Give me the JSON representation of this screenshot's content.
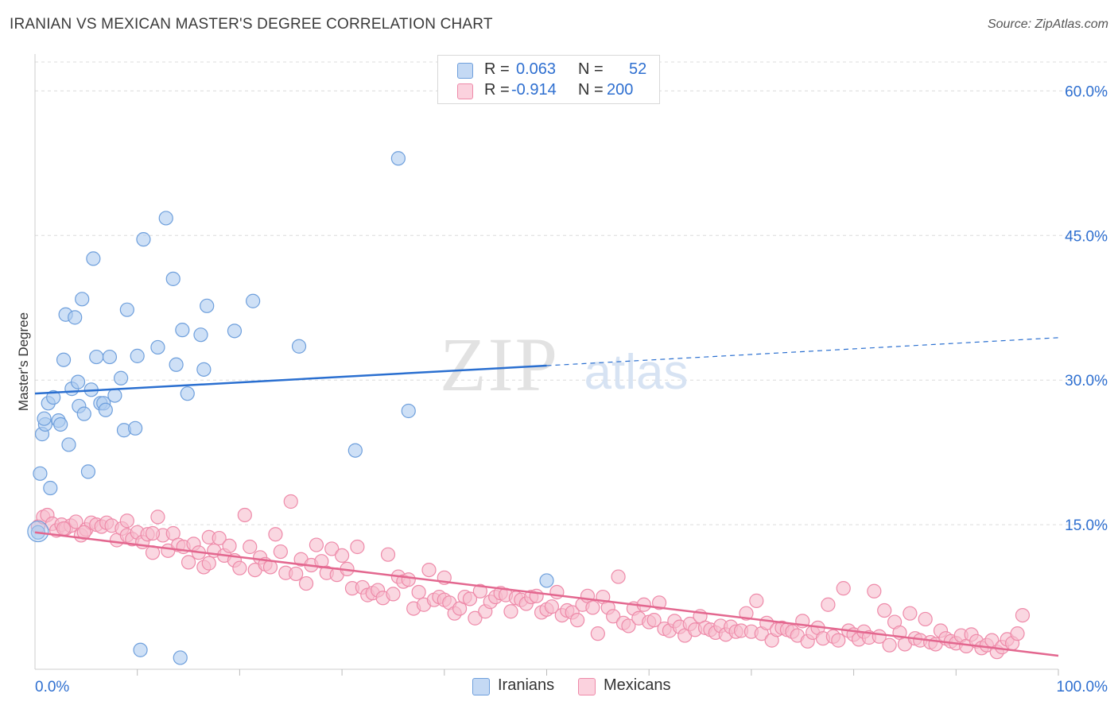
{
  "header": {
    "title": "IRANIAN VS MEXICAN MASTER'S DEGREE CORRELATION CHART",
    "source": "Source: ZipAtlas.com"
  },
  "watermark": {
    "zip": "ZIP",
    "atlas": "atlas"
  },
  "legend": {
    "rows": [
      {
        "r_label": "R =",
        "r_value": "0.063",
        "n_label": "N =",
        "n_value": "52",
        "color": "#a9c8f0"
      },
      {
        "r_label": "R =",
        "r_value": "-0.914",
        "n_label": "N =",
        "n_value": "200",
        "color": "#f6b8cb"
      }
    ]
  },
  "bottom_legend": [
    {
      "label": "Iranians",
      "color": "#a9c8f0"
    },
    {
      "label": "Mexicans",
      "color": "#f6b8cb"
    }
  ],
  "colors": {
    "blue_fill": "#aecbf0",
    "blue_stroke": "#6e9fdc",
    "blue_line": "#2a6fd0",
    "pink_fill": "#f7bccd",
    "pink_stroke": "#ee8aa9",
    "pink_line": "#e3678f",
    "tick_label": "#2e6fd0",
    "grid": "#dcdcdc"
  },
  "chart_data": {
    "type": "scatter",
    "title": "IRANIAN VS MEXICAN MASTER'S DEGREE CORRELATION CHART",
    "xlabel": "",
    "ylabel": "Master's Degree",
    "xlim": [
      0,
      100
    ],
    "ylim": [
      0,
      63
    ],
    "x_tick_labels": [
      "0.0%",
      "100.0%"
    ],
    "y_ticks": [
      15,
      30,
      45,
      60
    ],
    "y_tick_labels": [
      "15.0%",
      "30.0%",
      "45.0%",
      "60.0%"
    ],
    "grid": true,
    "series": [
      {
        "name": "Iranians",
        "r": 0.063,
        "n": 52,
        "trend": {
          "x0": 0,
          "y0": 28.6,
          "x1": 50,
          "y1": 31.5,
          "dashed_to_x": 100,
          "dashed_to_y": 34.4
        },
        "points": [
          [
            0.5,
            20.3
          ],
          [
            0.7,
            24.4
          ],
          [
            1.0,
            25.4
          ],
          [
            1.3,
            27.6
          ],
          [
            1.5,
            18.8
          ],
          [
            1.8,
            28.2
          ],
          [
            2.3,
            25.8
          ],
          [
            2.5,
            25.4
          ],
          [
            2.8,
            32.1
          ],
          [
            3.0,
            36.8
          ],
          [
            3.3,
            23.3
          ],
          [
            3.6,
            29.1
          ],
          [
            3.9,
            36.5
          ],
          [
            4.2,
            29.8
          ],
          [
            4.3,
            27.3
          ],
          [
            4.6,
            38.4
          ],
          [
            4.8,
            26.5
          ],
          [
            5.2,
            20.5
          ],
          [
            5.5,
            29.0
          ],
          [
            5.7,
            42.6
          ],
          [
            6.0,
            32.4
          ],
          [
            6.4,
            27.6
          ],
          [
            6.7,
            27.6
          ],
          [
            6.9,
            26.9
          ],
          [
            7.3,
            32.4
          ],
          [
            7.8,
            28.4
          ],
          [
            8.4,
            30.2
          ],
          [
            8.7,
            24.8
          ],
          [
            9.0,
            37.3
          ],
          [
            9.8,
            25.0
          ],
          [
            10.0,
            32.5
          ],
          [
            10.3,
            2.0
          ],
          [
            10.6,
            44.6
          ],
          [
            12.0,
            33.4
          ],
          [
            12.8,
            46.8
          ],
          [
            13.5,
            40.5
          ],
          [
            13.8,
            31.6
          ],
          [
            14.2,
            1.2
          ],
          [
            14.4,
            35.2
          ],
          [
            14.9,
            28.6
          ],
          [
            16.2,
            34.7
          ],
          [
            16.5,
            31.1
          ],
          [
            16.8,
            37.7
          ],
          [
            19.5,
            35.1
          ],
          [
            21.3,
            38.2
          ],
          [
            25.8,
            33.5
          ],
          [
            31.3,
            22.7
          ],
          [
            35.5,
            53.0
          ],
          [
            36.5,
            26.8
          ],
          [
            50.0,
            9.2
          ],
          [
            0.3,
            14.2
          ],
          [
            0.9,
            26.0
          ]
        ]
      },
      {
        "name": "Mexicans",
        "r": -0.914,
        "n": 200,
        "trend": {
          "x0": 0,
          "y0": 14.2,
          "x1": 100,
          "y1": 1.4
        },
        "points": [
          [
            0.3,
            14.8
          ],
          [
            0.8,
            15.8
          ],
          [
            1.2,
            16.0
          ],
          [
            1.7,
            15.1
          ],
          [
            2.1,
            14.4
          ],
          [
            2.6,
            15.0
          ],
          [
            3.0,
            14.6
          ],
          [
            3.5,
            14.9
          ],
          [
            4.0,
            15.3
          ],
          [
            4.5,
            13.9
          ],
          [
            5.0,
            14.5
          ],
          [
            5.5,
            15.2
          ],
          [
            6.0,
            15.0
          ],
          [
            6.5,
            14.8
          ],
          [
            7.0,
            15.2
          ],
          [
            7.5,
            14.9
          ],
          [
            8.0,
            13.4
          ],
          [
            8.5,
            14.6
          ],
          [
            9.0,
            13.9
          ],
          [
            9.5,
            13.5
          ],
          [
            10.0,
            14.2
          ],
          [
            10.5,
            13.2
          ],
          [
            11.0,
            14.0
          ],
          [
            11.5,
            12.1
          ],
          [
            12.0,
            15.8
          ],
          [
            12.5,
            13.9
          ],
          [
            13.0,
            12.3
          ],
          [
            13.5,
            14.1
          ],
          [
            14.0,
            12.9
          ],
          [
            14.5,
            12.7
          ],
          [
            15.0,
            11.1
          ],
          [
            15.5,
            13.0
          ],
          [
            16.0,
            12.1
          ],
          [
            16.5,
            10.6
          ],
          [
            17.0,
            13.7
          ],
          [
            17.5,
            12.3
          ],
          [
            18.0,
            13.6
          ],
          [
            18.5,
            11.8
          ],
          [
            19.0,
            12.8
          ],
          [
            19.5,
            11.3
          ],
          [
            20.0,
            10.5
          ],
          [
            20.5,
            16.0
          ],
          [
            21.0,
            12.7
          ],
          [
            21.5,
            10.3
          ],
          [
            22.0,
            11.6
          ],
          [
            22.5,
            10.9
          ],
          [
            23.0,
            10.6
          ],
          [
            23.5,
            14.0
          ],
          [
            24.0,
            12.2
          ],
          [
            24.5,
            10.0
          ],
          [
            25.0,
            17.4
          ],
          [
            25.5,
            9.9
          ],
          [
            26.0,
            11.4
          ],
          [
            26.5,
            8.9
          ],
          [
            27.0,
            10.8
          ],
          [
            27.5,
            12.9
          ],
          [
            28.0,
            11.2
          ],
          [
            28.5,
            10.0
          ],
          [
            29.0,
            12.5
          ],
          [
            29.5,
            9.8
          ],
          [
            30.0,
            11.8
          ],
          [
            30.5,
            10.4
          ],
          [
            31.0,
            8.4
          ],
          [
            31.5,
            12.7
          ],
          [
            32.0,
            8.5
          ],
          [
            32.5,
            7.7
          ],
          [
            33.0,
            7.9
          ],
          [
            33.5,
            8.2
          ],
          [
            34.0,
            7.4
          ],
          [
            34.5,
            11.9
          ],
          [
            35.0,
            7.8
          ],
          [
            35.5,
            9.6
          ],
          [
            36.0,
            9.1
          ],
          [
            36.5,
            9.3
          ],
          [
            37.0,
            6.3
          ],
          [
            37.5,
            8.0
          ],
          [
            38.0,
            6.7
          ],
          [
            38.5,
            10.3
          ],
          [
            39.0,
            7.2
          ],
          [
            39.5,
            7.5
          ],
          [
            40.0,
            7.2
          ],
          [
            40.5,
            6.9
          ],
          [
            41.0,
            5.8
          ],
          [
            41.5,
            6.3
          ],
          [
            42.0,
            7.5
          ],
          [
            42.5,
            7.3
          ],
          [
            43.0,
            5.3
          ],
          [
            43.5,
            8.1
          ],
          [
            44.0,
            6.0
          ],
          [
            44.5,
            7.0
          ],
          [
            45.0,
            7.5
          ],
          [
            45.5,
            7.9
          ],
          [
            46.0,
            7.7
          ],
          [
            46.5,
            6.0
          ],
          [
            47.0,
            7.4
          ],
          [
            47.5,
            7.2
          ],
          [
            48.0,
            6.8
          ],
          [
            48.5,
            7.5
          ],
          [
            49.0,
            7.6
          ],
          [
            49.5,
            5.9
          ],
          [
            50.0,
            6.2
          ],
          [
            50.5,
            6.5
          ],
          [
            51.0,
            8.0
          ],
          [
            51.5,
            5.6
          ],
          [
            52.0,
            6.1
          ],
          [
            52.5,
            5.9
          ],
          [
            53.0,
            5.1
          ],
          [
            53.5,
            6.7
          ],
          [
            54.0,
            7.6
          ],
          [
            54.5,
            6.4
          ],
          [
            55.0,
            3.7
          ],
          [
            55.5,
            7.5
          ],
          [
            56.0,
            6.4
          ],
          [
            56.5,
            5.5
          ],
          [
            57.0,
            9.6
          ],
          [
            57.5,
            4.8
          ],
          [
            58.0,
            4.5
          ],
          [
            58.5,
            6.3
          ],
          [
            59.0,
            5.3
          ],
          [
            59.5,
            6.7
          ],
          [
            60.0,
            4.9
          ],
          [
            60.5,
            5.1
          ],
          [
            61.0,
            6.9
          ],
          [
            61.5,
            4.2
          ],
          [
            62.0,
            4.0
          ],
          [
            62.5,
            5.0
          ],
          [
            63.0,
            4.4
          ],
          [
            63.5,
            3.5
          ],
          [
            64.0,
            4.7
          ],
          [
            64.5,
            4.1
          ],
          [
            65.0,
            5.5
          ],
          [
            65.5,
            4.3
          ],
          [
            66.0,
            4.1
          ],
          [
            66.5,
            3.8
          ],
          [
            67.0,
            4.5
          ],
          [
            67.5,
            3.6
          ],
          [
            68.0,
            4.4
          ],
          [
            68.5,
            3.9
          ],
          [
            69.0,
            4.0
          ],
          [
            69.5,
            5.8
          ],
          [
            70.0,
            3.9
          ],
          [
            70.5,
            7.1
          ],
          [
            71.0,
            3.7
          ],
          [
            71.5,
            4.8
          ],
          [
            72.0,
            3.0
          ],
          [
            72.5,
            4.1
          ],
          [
            73.0,
            4.3
          ],
          [
            73.5,
            4.1
          ],
          [
            74.0,
            3.9
          ],
          [
            74.5,
            3.5
          ],
          [
            75.0,
            5.0
          ],
          [
            75.5,
            2.9
          ],
          [
            76.0,
            3.8
          ],
          [
            76.5,
            4.3
          ],
          [
            77.0,
            3.2
          ],
          [
            77.5,
            6.7
          ],
          [
            78.0,
            3.4
          ],
          [
            78.5,
            3.0
          ],
          [
            79.0,
            8.4
          ],
          [
            79.5,
            4.0
          ],
          [
            80.0,
            3.6
          ],
          [
            80.5,
            3.1
          ],
          [
            81.0,
            3.9
          ],
          [
            81.5,
            3.3
          ],
          [
            82.0,
            8.1
          ],
          [
            82.5,
            3.4
          ],
          [
            83.0,
            6.1
          ],
          [
            83.5,
            2.5
          ],
          [
            84.0,
            4.9
          ],
          [
            84.5,
            3.8
          ],
          [
            85.0,
            2.6
          ],
          [
            85.5,
            5.8
          ],
          [
            86.0,
            3.2
          ],
          [
            86.5,
            3.0
          ],
          [
            87.0,
            5.2
          ],
          [
            87.5,
            2.8
          ],
          [
            88.0,
            2.6
          ],
          [
            88.5,
            4.0
          ],
          [
            89.0,
            3.2
          ],
          [
            89.5,
            2.9
          ],
          [
            90.0,
            2.7
          ],
          [
            90.5,
            3.5
          ],
          [
            91.0,
            2.4
          ],
          [
            91.5,
            3.6
          ],
          [
            92.0,
            2.9
          ],
          [
            92.5,
            2.2
          ],
          [
            93.0,
            2.5
          ],
          [
            93.5,
            3.0
          ],
          [
            94.0,
            1.8
          ],
          [
            94.5,
            2.3
          ],
          [
            95.0,
            3.1
          ],
          [
            95.5,
            2.7
          ],
          [
            96.0,
            3.7
          ],
          [
            96.5,
            5.6
          ],
          [
            40.0,
            9.5
          ],
          [
            9.0,
            15.4
          ],
          [
            11.5,
            14.1
          ],
          [
            4.8,
            14.2
          ],
          [
            2.8,
            14.6
          ],
          [
            17.0,
            11.0
          ]
        ]
      }
    ]
  }
}
